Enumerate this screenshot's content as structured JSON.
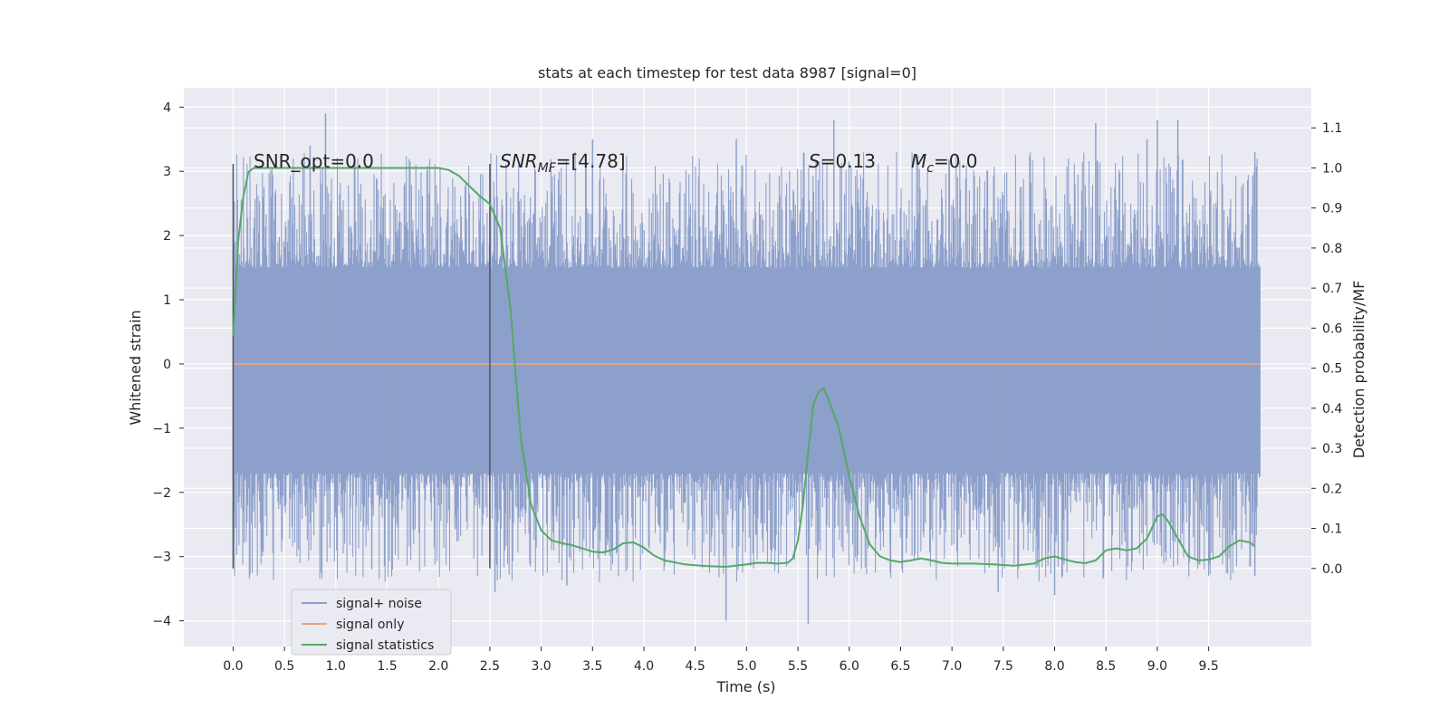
{
  "chart_data": {
    "type": "line",
    "title": "stats at each timestep for test data 8987 [signal=0]",
    "xlabel": "Time (s)",
    "ylabel": "Whitened strain",
    "y2label": "Detection probability/MF",
    "xlim": [
      -0.48,
      10.5
    ],
    "ylim": [
      -4.4,
      4.3
    ],
    "y2lim": [
      -0.195,
      1.2
    ],
    "x_ticks": [
      "0.0",
      "0.5",
      "1.0",
      "1.5",
      "2.0",
      "2.5",
      "3.0",
      "3.5",
      "4.0",
      "4.5",
      "5.0",
      "5.5",
      "6.0",
      "6.5",
      "7.0",
      "7.5",
      "8.0",
      "8.5",
      "9.0",
      "9.5"
    ],
    "y_ticks": [
      4,
      3,
      2,
      1,
      0,
      -1,
      -2,
      -3,
      -4
    ],
    "y_tick_labels": [
      "4",
      "3",
      "2",
      "1",
      "0",
      "−1",
      "−2",
      "−3",
      "−4"
    ],
    "y2_ticks": [
      "1.1",
      "1.0",
      "0.9",
      "0.8",
      "0.7",
      "0.6",
      "0.5",
      "0.4",
      "0.3",
      "0.2",
      "0.1",
      "0.0"
    ],
    "grid": true,
    "legend_position": "bottom-left",
    "annotations": {
      "snr_opt": "SNR_opt=0.0",
      "snr_mf_main": "SNR",
      "snr_mf_sub": "MF",
      "snr_mf_val": "=[4.78]",
      "s_main": "S",
      "s_val": "=0.13",
      "mc_main": "M",
      "mc_sub": "c",
      "mc_val": "=0.0"
    },
    "vertical_markers": [
      0.0,
      2.5
    ],
    "series": [
      {
        "name": "signal+ noise",
        "color": "#8da0cb",
        "axis": "left",
        "x_range": [
          0.0,
          10.0
        ],
        "bulk_range": [
          -1.3,
          1.2
        ],
        "positive_peaks": [
          [
            0.9,
            3.9
          ],
          [
            5.85,
            3.8
          ],
          [
            8.4,
            3.75
          ],
          [
            9.0,
            3.8
          ],
          [
            9.2,
            3.8
          ],
          [
            3.5,
            3.5
          ],
          [
            4.9,
            3.5
          ],
          [
            0.75,
            3.4
          ],
          [
            8.9,
            3.5
          ],
          [
            9.95,
            3.3
          ]
        ],
        "negative_peaks": [
          [
            4.8,
            -4.0
          ],
          [
            5.6,
            -4.05
          ],
          [
            8.0,
            -3.6
          ],
          [
            7.45,
            -3.55
          ],
          [
            2.55,
            -3.55
          ],
          [
            3.25,
            -3.45
          ],
          [
            9.95,
            -3.3
          ],
          [
            1.35,
            -3.2
          ],
          [
            1.55,
            -3.2
          ],
          [
            6.4,
            -3.25
          ]
        ]
      },
      {
        "name": "signal only",
        "color": "#e8a57d",
        "axis": "left",
        "x": [
          0.0,
          10.0
        ],
        "y": [
          0.0,
          0.0
        ]
      },
      {
        "name": "signal statistics",
        "color": "#55a868",
        "axis": "right",
        "x": [
          0.0,
          0.05,
          0.1,
          0.15,
          0.2,
          0.3,
          0.5,
          1.0,
          1.5,
          2.0,
          2.1,
          2.2,
          2.3,
          2.4,
          2.5,
          2.6,
          2.7,
          2.8,
          2.9,
          3.0,
          3.1,
          3.2,
          3.3,
          3.4,
          3.5,
          3.6,
          3.7,
          3.8,
          3.9,
          4.0,
          4.1,
          4.2,
          4.4,
          4.6,
          4.8,
          5.0,
          5.1,
          5.2,
          5.3,
          5.4,
          5.45,
          5.5,
          5.55,
          5.6,
          5.65,
          5.7,
          5.75,
          5.8,
          5.9,
          6.0,
          6.1,
          6.2,
          6.3,
          6.4,
          6.5,
          6.6,
          6.7,
          6.8,
          6.9,
          7.0,
          7.2,
          7.4,
          7.6,
          7.8,
          7.9,
          8.0,
          8.1,
          8.2,
          8.3,
          8.4,
          8.5,
          8.6,
          8.7,
          8.8,
          8.9,
          9.0,
          9.05,
          9.1,
          9.2,
          9.3,
          9.4,
          9.5,
          9.6,
          9.7,
          9.8,
          9.9,
          9.95
        ],
        "y": [
          0.58,
          0.82,
          0.93,
          0.99,
          1.0,
          1.0,
          1.0,
          1.0,
          1.0,
          1.0,
          0.995,
          0.98,
          0.955,
          0.93,
          0.91,
          0.85,
          0.65,
          0.33,
          0.16,
          0.095,
          0.07,
          0.063,
          0.058,
          0.05,
          0.042,
          0.04,
          0.047,
          0.063,
          0.065,
          0.052,
          0.032,
          0.02,
          0.01,
          0.006,
          0.004,
          0.01,
          0.014,
          0.014,
          0.012,
          0.014,
          0.025,
          0.07,
          0.16,
          0.29,
          0.41,
          0.44,
          0.45,
          0.42,
          0.35,
          0.23,
          0.13,
          0.06,
          0.03,
          0.02,
          0.016,
          0.02,
          0.025,
          0.02,
          0.014,
          0.012,
          0.012,
          0.01,
          0.007,
          0.012,
          0.025,
          0.03,
          0.022,
          0.016,
          0.013,
          0.02,
          0.045,
          0.05,
          0.045,
          0.05,
          0.075,
          0.13,
          0.135,
          0.12,
          0.075,
          0.03,
          0.02,
          0.022,
          0.03,
          0.055,
          0.07,
          0.065,
          0.055
        ]
      }
    ]
  }
}
